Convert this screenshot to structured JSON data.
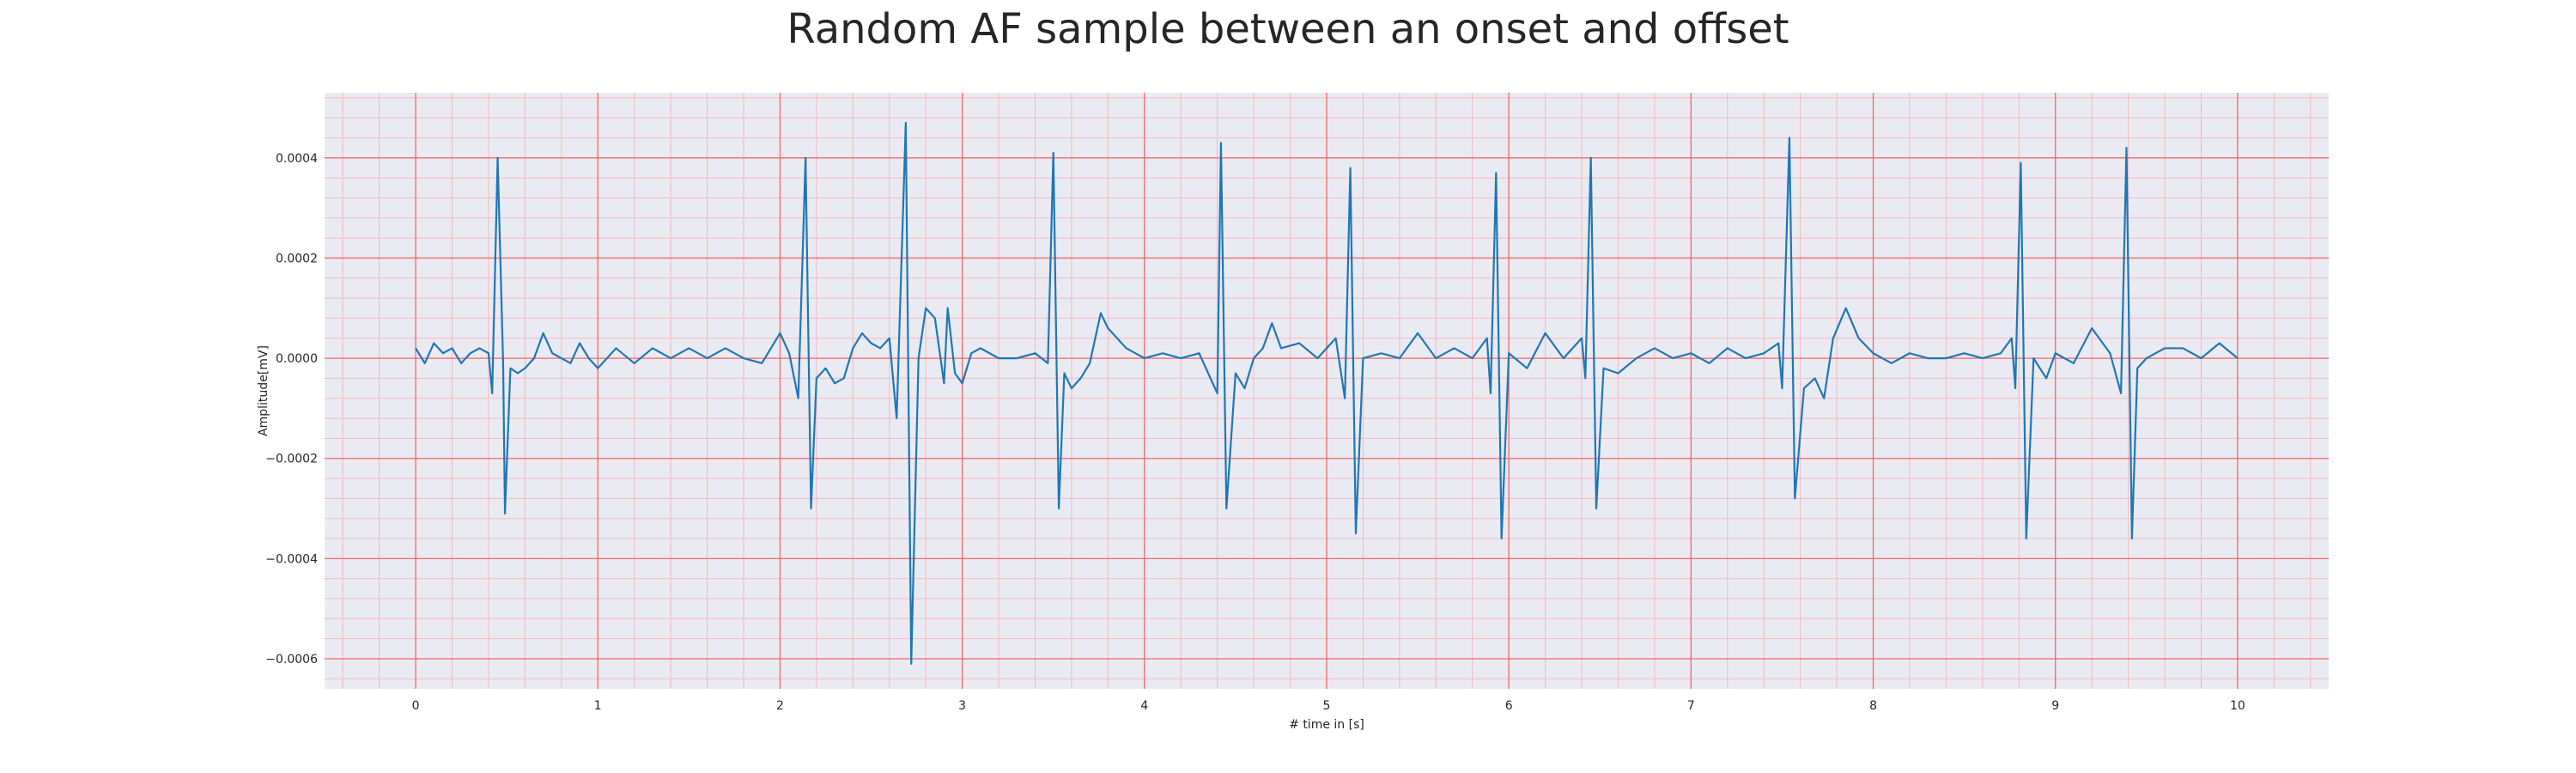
{
  "chart_data": {
    "type": "line",
    "title": "Random AF sample between an onset and offset",
    "xlabel": "# time in [s]",
    "ylabel": "Amplitude[mV]",
    "xlim": [
      -0.5,
      10.5
    ],
    "ylim": [
      -0.00066,
      0.00053
    ],
    "xticks": [
      0,
      1,
      2,
      3,
      4,
      5,
      6,
      7,
      8,
      9,
      10
    ],
    "xtick_labels": [
      "0",
      "1",
      "2",
      "3",
      "4",
      "5",
      "6",
      "7",
      "8",
      "9",
      "10"
    ],
    "yticks": [
      -0.0006,
      -0.0004,
      -0.0002,
      0.0,
      0.0002,
      0.0004
    ],
    "ytick_labels": [
      "−0.0006",
      "−0.0004",
      "−0.0002",
      "0.0000",
      "0.0002",
      "0.0004"
    ],
    "grid": true,
    "minor_grid": true,
    "colors": {
      "line": "#1f77b4",
      "background": "#eaeaf2",
      "major_grid": "#f06a6a",
      "minor_grid": "#f2b9bd"
    },
    "series": [
      {
        "values": [
          [
            0.0,
            2e-05
          ],
          [
            0.05,
            -1e-05
          ],
          [
            0.1,
            3e-05
          ],
          [
            0.15,
            1e-05
          ],
          [
            0.2,
            2e-05
          ],
          [
            0.25,
            -1e-05
          ],
          [
            0.3,
            1e-05
          ],
          [
            0.35,
            2e-05
          ],
          [
            0.4,
            1e-05
          ],
          [
            0.42,
            -7e-05
          ],
          [
            0.45,
            0.0004
          ],
          [
            0.48,
            -1e-05
          ],
          [
            0.49,
            -0.00031
          ],
          [
            0.52,
            -2e-05
          ],
          [
            0.56,
            -3e-05
          ],
          [
            0.6,
            -2e-05
          ],
          [
            0.65,
            0.0
          ],
          [
            0.7,
            5e-05
          ],
          [
            0.75,
            1e-05
          ],
          [
            0.8,
            0.0
          ],
          [
            0.85,
            -1e-05
          ],
          [
            0.9,
            3e-05
          ],
          [
            0.95,
            0.0
          ],
          [
            1.0,
            -2e-05
          ],
          [
            1.1,
            2e-05
          ],
          [
            1.2,
            -1e-05
          ],
          [
            1.3,
            2e-05
          ],
          [
            1.4,
            0.0
          ],
          [
            1.5,
            2e-05
          ],
          [
            1.6,
            0.0
          ],
          [
            1.7,
            2e-05
          ],
          [
            1.8,
            0.0
          ],
          [
            1.9,
            -1e-05
          ],
          [
            2.0,
            5e-05
          ],
          [
            2.05,
            1e-05
          ],
          [
            2.1,
            -8e-05
          ],
          [
            2.14,
            0.0004
          ],
          [
            2.17,
            -0.0003
          ],
          [
            2.2,
            -4e-05
          ],
          [
            2.25,
            -2e-05
          ],
          [
            2.3,
            -5e-05
          ],
          [
            2.35,
            -4e-05
          ],
          [
            2.4,
            2e-05
          ],
          [
            2.45,
            5e-05
          ],
          [
            2.5,
            3e-05
          ],
          [
            2.55,
            2e-05
          ],
          [
            2.6,
            4e-05
          ],
          [
            2.64,
            -0.00012
          ],
          [
            2.69,
            0.00047
          ],
          [
            2.72,
            -0.00061
          ],
          [
            2.76,
            0.0
          ],
          [
            2.8,
            0.0001
          ],
          [
            2.85,
            8e-05
          ],
          [
            2.9,
            -5e-05
          ],
          [
            2.92,
            0.0001
          ],
          [
            2.96,
            -3e-05
          ],
          [
            3.0,
            -5e-05
          ],
          [
            3.05,
            1e-05
          ],
          [
            3.1,
            2e-05
          ],
          [
            3.2,
            0.0
          ],
          [
            3.3,
            0.0
          ],
          [
            3.4,
            1e-05
          ],
          [
            3.47,
            -1e-05
          ],
          [
            3.5,
            0.00041
          ],
          [
            3.53,
            -0.0003
          ],
          [
            3.56,
            -3e-05
          ],
          [
            3.6,
            -6e-05
          ],
          [
            3.65,
            -4e-05
          ],
          [
            3.7,
            -1e-05
          ],
          [
            3.76,
            9e-05
          ],
          [
            3.8,
            6e-05
          ],
          [
            3.9,
            2e-05
          ],
          [
            4.0,
            0.0
          ],
          [
            4.1,
            1e-05
          ],
          [
            4.2,
            0.0
          ],
          [
            4.3,
            1e-05
          ],
          [
            4.4,
            -7e-05
          ],
          [
            4.42,
            0.00043
          ],
          [
            4.45,
            -0.0003
          ],
          [
            4.5,
            -3e-05
          ],
          [
            4.55,
            -6e-05
          ],
          [
            4.6,
            0.0
          ],
          [
            4.65,
            2e-05
          ],
          [
            4.7,
            7e-05
          ],
          [
            4.75,
            2e-05
          ],
          [
            4.85,
            3e-05
          ],
          [
            4.95,
            0.0
          ],
          [
            5.05,
            4e-05
          ],
          [
            5.1,
            -8e-05
          ],
          [
            5.13,
            0.00038
          ],
          [
            5.16,
            -0.00035
          ],
          [
            5.2,
            0.0
          ],
          [
            5.3,
            1e-05
          ],
          [
            5.4,
            0.0
          ],
          [
            5.5,
            5e-05
          ],
          [
            5.6,
            0.0
          ],
          [
            5.7,
            2e-05
          ],
          [
            5.8,
            0.0
          ],
          [
            5.88,
            4e-05
          ],
          [
            5.9,
            -7e-05
          ],
          [
            5.93,
            0.00037
          ],
          [
            5.96,
            -0.00036
          ],
          [
            6.0,
            1e-05
          ],
          [
            6.1,
            -2e-05
          ],
          [
            6.2,
            5e-05
          ],
          [
            6.3,
            0.0
          ],
          [
            6.4,
            4e-05
          ],
          [
            6.42,
            -4e-05
          ],
          [
            6.45,
            0.0004
          ],
          [
            6.48,
            -0.0003
          ],
          [
            6.52,
            -2e-05
          ],
          [
            6.6,
            -3e-05
          ],
          [
            6.7,
            0.0
          ],
          [
            6.8,
            2e-05
          ],
          [
            6.9,
            0.0
          ],
          [
            7.0,
            1e-05
          ],
          [
            7.1,
            -1e-05
          ],
          [
            7.2,
            2e-05
          ],
          [
            7.3,
            0.0
          ],
          [
            7.4,
            1e-05
          ],
          [
            7.48,
            3e-05
          ],
          [
            7.5,
            -6e-05
          ],
          [
            7.54,
            0.00044
          ],
          [
            7.57,
            -0.00028
          ],
          [
            7.62,
            -6e-05
          ],
          [
            7.68,
            -4e-05
          ],
          [
            7.73,
            -8e-05
          ],
          [
            7.78,
            4e-05
          ],
          [
            7.85,
            0.0001
          ],
          [
            7.92,
            4e-05
          ],
          [
            8.0,
            1e-05
          ],
          [
            8.1,
            -1e-05
          ],
          [
            8.2,
            1e-05
          ],
          [
            8.3,
            0.0
          ],
          [
            8.4,
            0.0
          ],
          [
            8.5,
            1e-05
          ],
          [
            8.6,
            0.0
          ],
          [
            8.7,
            1e-05
          ],
          [
            8.76,
            4e-05
          ],
          [
            8.78,
            -6e-05
          ],
          [
            8.81,
            0.00039
          ],
          [
            8.84,
            -0.00036
          ],
          [
            8.88,
            0.0
          ],
          [
            8.95,
            -4e-05
          ],
          [
            9.0,
            1e-05
          ],
          [
            9.1,
            -1e-05
          ],
          [
            9.2,
            6e-05
          ],
          [
            9.3,
            1e-05
          ],
          [
            9.36,
            -7e-05
          ],
          [
            9.39,
            0.00042
          ],
          [
            9.42,
            -0.00036
          ],
          [
            9.45,
            -2e-05
          ],
          [
            9.5,
            0.0
          ],
          [
            9.6,
            2e-05
          ],
          [
            9.7,
            2e-05
          ],
          [
            9.8,
            0.0
          ],
          [
            9.9,
            3e-05
          ],
          [
            10.0,
            0.0
          ]
        ]
      }
    ]
  }
}
